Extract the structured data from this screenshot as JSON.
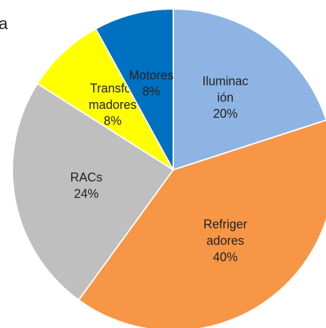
{
  "chart_data": {
    "type": "pie",
    "title": "a",
    "categories": [
      "Iluminación",
      "Refrigeradores",
      "RACs",
      "Transformadores",
      "Motores"
    ],
    "values": [
      20,
      40,
      24,
      8,
      8
    ],
    "value_labels": [
      "20%",
      "40%",
      "24%",
      "8%",
      "8%"
    ],
    "colors": [
      "#8eb4e3",
      "#f79646",
      "#bfbfbf",
      "#ffff00",
      "#0070c0"
    ]
  }
}
